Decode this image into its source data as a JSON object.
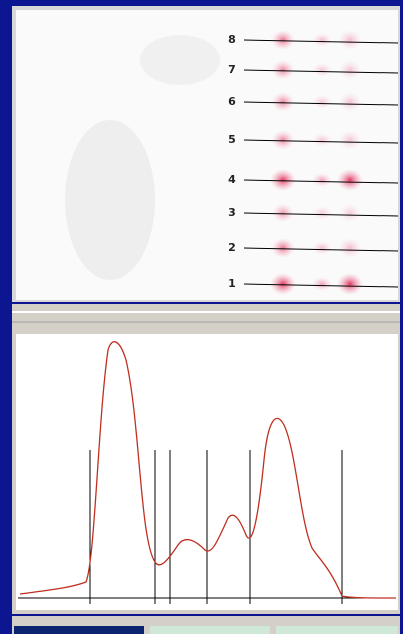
{
  "gel": {
    "lane_labels": [
      "8",
      "7",
      "6",
      "5",
      "4",
      "3",
      "2",
      "1"
    ]
  }
}
